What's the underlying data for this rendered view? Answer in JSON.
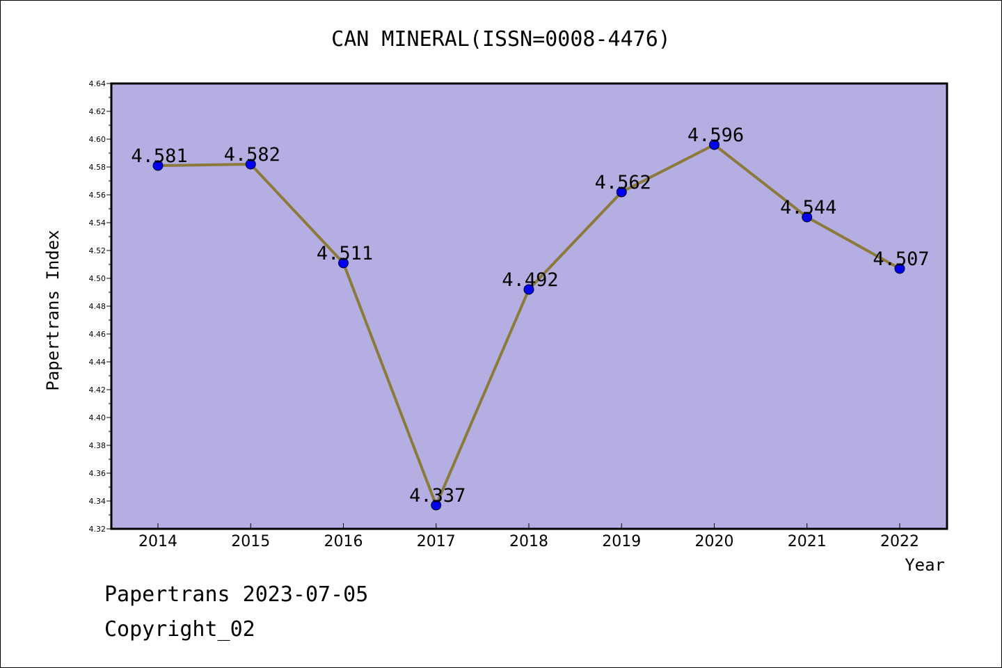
{
  "footer": {
    "line1": "Papertrans 2023-07-05",
    "line2": "Copyright_02"
  },
  "colors": {
    "plot_background": "#b4aee2",
    "line": "#8b7a3a",
    "marker": "#0000ee"
  },
  "chart_data": {
    "type": "line",
    "title": "CAN MINERAL(ISSN=0008-4476)",
    "xlabel": "Year",
    "ylabel": "Papertrans Index",
    "categories": [
      "2014",
      "2015",
      "2016",
      "2017",
      "2018",
      "2019",
      "2020",
      "2021",
      "2022"
    ],
    "values": [
      4.581,
      4.582,
      4.511,
      4.337,
      4.492,
      4.562,
      4.596,
      4.544,
      4.507
    ],
    "data_labels": [
      "4.581",
      "4.582",
      "4.511",
      "4.337",
      "4.492",
      "4.562",
      "4.596",
      "4.544",
      "4.507"
    ],
    "ylim": [
      4.32,
      4.64
    ],
    "yticks": [
      "4.32",
      "4.34",
      "4.36",
      "4.38",
      "4.40",
      "4.42",
      "4.44",
      "4.46",
      "4.48",
      "4.50",
      "4.52",
      "4.54",
      "4.56",
      "4.58",
      "4.60",
      "4.62",
      "4.64"
    ],
    "grid": false,
    "legend": "none"
  }
}
